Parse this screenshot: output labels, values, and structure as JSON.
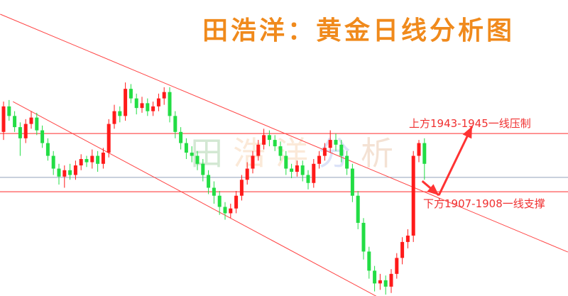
{
  "title": "田浩洋：黄金日线分析图",
  "watermark": [
    "田",
    "浩",
    "洋",
    "分",
    "析"
  ],
  "chart_data": {
    "type": "candlestick",
    "title": "田浩洋：黄金日线分析图",
    "timeframe": "daily",
    "axes_shown": false,
    "grid": false,
    "colors": {
      "up": "#ff1a1a",
      "down": "#22dd44",
      "level_line": "#ff5555",
      "reference_line": "#a8b4c8",
      "trend_line": "#ff4444",
      "arrow": "#ff3333",
      "title": "#f08a1c"
    },
    "ohlc": [
      [
        1945,
        1964,
        1940,
        1961
      ],
      [
        1961,
        1965,
        1952,
        1955
      ],
      [
        1955,
        1958,
        1945,
        1948
      ],
      [
        1948,
        1951,
        1930,
        1941
      ],
      [
        1941,
        1953,
        1938,
        1950
      ],
      [
        1950,
        1958,
        1947,
        1954
      ],
      [
        1954,
        1957,
        1943,
        1946
      ],
      [
        1946,
        1949,
        1935,
        1938
      ],
      [
        1938,
        1941,
        1927,
        1930
      ],
      [
        1930,
        1933,
        1918,
        1922
      ],
      [
        1922,
        1925,
        1912,
        1917
      ],
      [
        1917,
        1924,
        1910,
        1921
      ],
      [
        1921,
        1925,
        1915,
        1918
      ],
      [
        1918,
        1927,
        1915,
        1924
      ],
      [
        1924,
        1931,
        1921,
        1928
      ],
      [
        1928,
        1930,
        1923,
        1926
      ],
      [
        1926,
        1934,
        1922,
        1930
      ],
      [
        1930,
        1933,
        1920,
        1925
      ],
      [
        1925,
        1935,
        1922,
        1932
      ],
      [
        1932,
        1953,
        1929,
        1950
      ],
      [
        1950,
        1962,
        1947,
        1958
      ],
      [
        1958,
        1961,
        1951,
        1955
      ],
      [
        1955,
        1976,
        1952,
        1972
      ],
      [
        1972,
        1975,
        1963,
        1966
      ],
      [
        1966,
        1969,
        1956,
        1960
      ],
      [
        1960,
        1967,
        1957,
        1963
      ],
      [
        1963,
        1966,
        1955,
        1958
      ],
      [
        1958,
        1964,
        1955,
        1961
      ],
      [
        1961,
        1969,
        1958,
        1966
      ],
      [
        1966,
        1973,
        1962,
        1970
      ],
      [
        1970,
        1973,
        1951,
        1955
      ],
      [
        1955,
        1958,
        1941,
        1945
      ],
      [
        1945,
        1948,
        1934,
        1938
      ],
      [
        1938,
        1941,
        1928,
        1932
      ],
      [
        1932,
        1936,
        1926,
        1930
      ],
      [
        1930,
        1933,
        1921,
        1925
      ],
      [
        1925,
        1928,
        1914,
        1918
      ],
      [
        1918,
        1921,
        1906,
        1910
      ],
      [
        1910,
        1914,
        1900,
        1905
      ],
      [
        1905,
        1908,
        1893,
        1898
      ],
      [
        1898,
        1901,
        1890,
        1894
      ],
      [
        1894,
        1900,
        1891,
        1897
      ],
      [
        1897,
        1908,
        1894,
        1905
      ],
      [
        1905,
        1918,
        1902,
        1915
      ],
      [
        1915,
        1926,
        1912,
        1922
      ],
      [
        1922,
        1933,
        1919,
        1930
      ],
      [
        1930,
        1940,
        1927,
        1937
      ],
      [
        1937,
        1947,
        1934,
        1943
      ],
      [
        1943,
        1946,
        1936,
        1940
      ],
      [
        1940,
        1943,
        1933,
        1936
      ],
      [
        1936,
        1939,
        1927,
        1930
      ],
      [
        1930,
        1933,
        1918,
        1922
      ],
      [
        1922,
        1925,
        1916,
        1920
      ],
      [
        1920,
        1927,
        1917,
        1924
      ],
      [
        1924,
        1927,
        1914,
        1918
      ],
      [
        1918,
        1921,
        1909,
        1913
      ],
      [
        1913,
        1928,
        1910,
        1925
      ],
      [
        1925,
        1933,
        1922,
        1930
      ],
      [
        1930,
        1938,
        1927,
        1935
      ],
      [
        1935,
        1946,
        1932,
        1940
      ],
      [
        1940,
        1944,
        1933,
        1937
      ],
      [
        1937,
        1940,
        1926,
        1930
      ],
      [
        1930,
        1933,
        1918,
        1922
      ],
      [
        1922,
        1925,
        1901,
        1905
      ],
      [
        1905,
        1908,
        1884,
        1888
      ],
      [
        1888,
        1891,
        1865,
        1870
      ],
      [
        1870,
        1873,
        1853,
        1858
      ],
      [
        1858,
        1861,
        1845,
        1850
      ],
      [
        1850,
        1856,
        1846,
        1852
      ],
      [
        1852,
        1855,
        1843,
        1848
      ],
      [
        1848,
        1859,
        1844,
        1856
      ],
      [
        1856,
        1869,
        1853,
        1866
      ],
      [
        1866,
        1879,
        1862,
        1876
      ],
      [
        1876,
        1884,
        1872,
        1880
      ],
      [
        1880,
        1933,
        1876,
        1930
      ],
      [
        1930,
        1940,
        1926,
        1938
      ],
      [
        1938,
        1941,
        1915,
        1925
      ]
    ],
    "horizontal_levels": [
      {
        "price": 1944,
        "role": "resistance"
      },
      {
        "price": 1907.5,
        "role": "support"
      },
      {
        "price": 1916.5,
        "role": "reference"
      }
    ],
    "trend_lines": [
      {
        "from": {
          "bar": -0.6,
          "price": 2018.8
        },
        "to": {
          "bar": 101.9,
          "price": 1869.7
        }
      },
      {
        "from": {
          "bar": 1.7,
          "price": 1964
        },
        "to": {
          "bar": 67.3,
          "price": 1842
        }
      }
    ],
    "forecast_path": [
      {
        "bar": 75.6,
        "price": 1914.2
      },
      {
        "bar": 78.6,
        "price": 1905.3
      },
      {
        "bar": 84.6,
        "price": 1948.5
      }
    ],
    "annotations": {
      "resistance": "上方1943-1945一线压制",
      "support": "下方1907-1908一线支撑"
    }
  }
}
